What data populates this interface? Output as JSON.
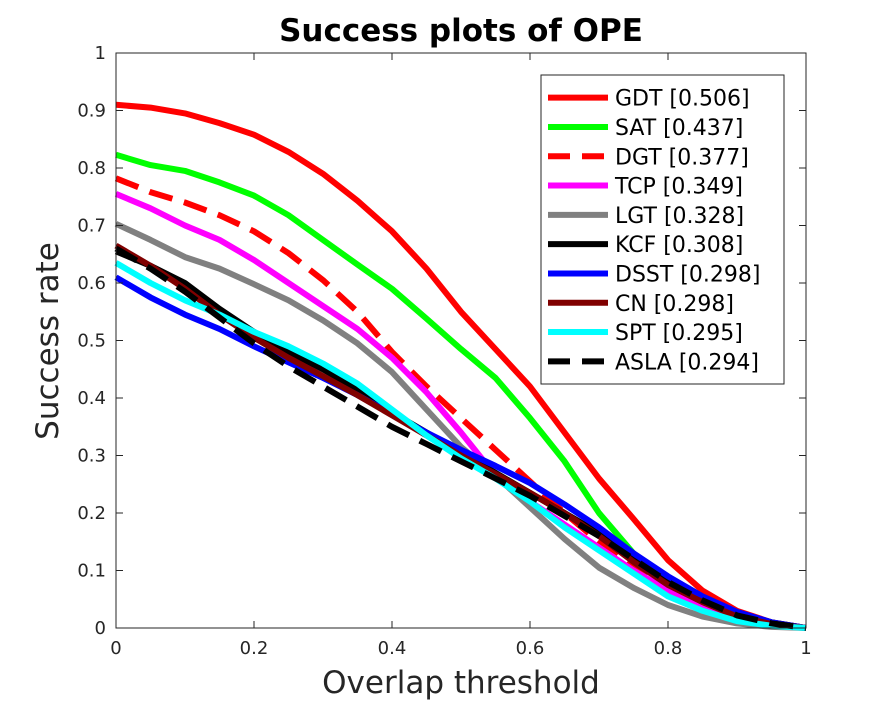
{
  "chart_data": {
    "type": "line",
    "title": "Success plots of OPE",
    "xlabel": "Overlap threshold",
    "ylabel": "Success rate",
    "xlim": [
      0,
      1
    ],
    "ylim": [
      0,
      1
    ],
    "x_ticks": [
      0,
      0.2,
      0.4,
      0.6,
      0.8,
      1
    ],
    "x_tick_labels": [
      "0",
      "0.2",
      "0.4",
      "0.6",
      "0.8",
      "1"
    ],
    "y_ticks": [
      0,
      0.1,
      0.2,
      0.3,
      0.4,
      0.5,
      0.6,
      0.7,
      0.8,
      0.9,
      1
    ],
    "y_tick_labels": [
      "0",
      "0.1",
      "0.2",
      "0.3",
      "0.4",
      "0.5",
      "0.6",
      "0.7",
      "0.8",
      "0.9",
      "1"
    ],
    "grid": false,
    "legend_position": "top-right",
    "x": [
      0,
      0.05,
      0.1,
      0.15,
      0.2,
      0.25,
      0.3,
      0.35,
      0.4,
      0.45,
      0.5,
      0.55,
      0.6,
      0.65,
      0.7,
      0.75,
      0.8,
      0.85,
      0.9,
      0.95,
      1
    ],
    "series": [
      {
        "name": "GDT",
        "label": "GDT [0.506]",
        "color": "#ff0000",
        "dash": "solid",
        "values": [
          0.91,
          0.905,
          0.895,
          0.878,
          0.858,
          0.828,
          0.79,
          0.743,
          0.69,
          0.625,
          0.55,
          0.485,
          0.42,
          0.34,
          0.26,
          0.19,
          0.118,
          0.065,
          0.03,
          0.01,
          0
        ]
      },
      {
        "name": "SAT",
        "label": "SAT [0.437]",
        "color": "#00ff00",
        "dash": "solid",
        "values": [
          0.823,
          0.805,
          0.795,
          0.775,
          0.752,
          0.718,
          0.675,
          0.632,
          0.59,
          0.538,
          0.485,
          0.435,
          0.365,
          0.29,
          0.2,
          0.13,
          0.08,
          0.045,
          0.02,
          0.007,
          0
        ]
      },
      {
        "name": "DGT",
        "label": "DGT [0.377]",
        "color": "#ff0000",
        "dash": "dashed",
        "values": [
          0.782,
          0.758,
          0.74,
          0.718,
          0.69,
          0.652,
          0.605,
          0.55,
          0.48,
          0.42,
          0.365,
          0.31,
          0.255,
          0.2,
          0.15,
          0.105,
          0.07,
          0.04,
          0.02,
          0.007,
          0
        ]
      },
      {
        "name": "TCP",
        "label": "TCP [0.349]",
        "color": "#ff00ff",
        "dash": "solid",
        "values": [
          0.755,
          0.73,
          0.7,
          0.675,
          0.64,
          0.6,
          0.56,
          0.52,
          0.47,
          0.41,
          0.34,
          0.265,
          0.22,
          0.18,
          0.14,
          0.1,
          0.065,
          0.035,
          0.015,
          0.005,
          0
        ]
      },
      {
        "name": "LGT",
        "label": "LGT [0.328]",
        "color": "#808080",
        "dash": "solid",
        "values": [
          0.703,
          0.675,
          0.645,
          0.625,
          0.598,
          0.57,
          0.535,
          0.495,
          0.445,
          0.38,
          0.315,
          0.265,
          0.21,
          0.155,
          0.105,
          0.07,
          0.04,
          0.02,
          0.008,
          0.002,
          0
        ]
      },
      {
        "name": "KCF",
        "label": "KCF [0.308]",
        "color": "#000000",
        "dash": "solid",
        "values": [
          0.655,
          0.63,
          0.6,
          0.555,
          0.515,
          0.48,
          0.45,
          0.415,
          0.375,
          0.34,
          0.305,
          0.27,
          0.235,
          0.2,
          0.165,
          0.12,
          0.08,
          0.05,
          0.025,
          0.01,
          0
        ]
      },
      {
        "name": "DSST",
        "label": "DSST [0.298]",
        "color": "#0000ff",
        "dash": "solid",
        "values": [
          0.61,
          0.575,
          0.545,
          0.52,
          0.49,
          0.462,
          0.435,
          0.405,
          0.372,
          0.34,
          0.31,
          0.282,
          0.252,
          0.215,
          0.175,
          0.13,
          0.09,
          0.055,
          0.028,
          0.01,
          0
        ]
      },
      {
        "name": "CN",
        "label": "CN [0.298]",
        "color": "#800000",
        "dash": "solid",
        "values": [
          0.665,
          0.63,
          0.59,
          0.545,
          0.505,
          0.47,
          0.438,
          0.405,
          0.37,
          0.335,
          0.3,
          0.268,
          0.235,
          0.2,
          0.16,
          0.115,
          0.075,
          0.045,
          0.02,
          0.007,
          0
        ]
      },
      {
        "name": "SPT",
        "label": "SPT [0.295]",
        "color": "#00ffff",
        "dash": "solid",
        "values": [
          0.635,
          0.6,
          0.57,
          0.545,
          0.515,
          0.49,
          0.46,
          0.425,
          0.38,
          0.335,
          0.295,
          0.26,
          0.22,
          0.175,
          0.135,
          0.095,
          0.055,
          0.03,
          0.012,
          0.004,
          0
        ]
      },
      {
        "name": "ASLA",
        "label": "ASLA [0.294]",
        "color": "#000000",
        "dash": "dashed",
        "values": [
          0.66,
          0.625,
          0.585,
          0.54,
          0.495,
          0.455,
          0.42,
          0.385,
          0.35,
          0.32,
          0.29,
          0.26,
          0.23,
          0.195,
          0.16,
          0.12,
          0.08,
          0.048,
          0.022,
          0.008,
          0
        ]
      }
    ]
  }
}
